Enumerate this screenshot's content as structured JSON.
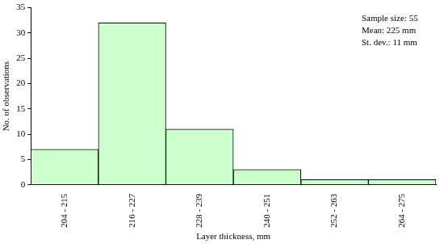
{
  "chart_data": {
    "type": "bar",
    "categories": [
      "204 - 215",
      "216 - 227",
      "228 - 239",
      "240 - 251",
      "252 - 263",
      "264 - 275"
    ],
    "values": [
      7,
      32,
      11,
      3,
      1,
      1
    ],
    "color": "#ccffcc",
    "x_label": "Layer thickness, mm",
    "y_label": "No. of observations",
    "annotations": [
      "Sample size: 55",
      "Mean: 225 mm",
      "St. dev.: 11 mm"
    ],
    "ylim": [
      0,
      35
    ],
    "yticks": [
      0,
      5,
      10,
      15,
      20,
      25,
      30,
      35
    ],
    "grid": false
  }
}
